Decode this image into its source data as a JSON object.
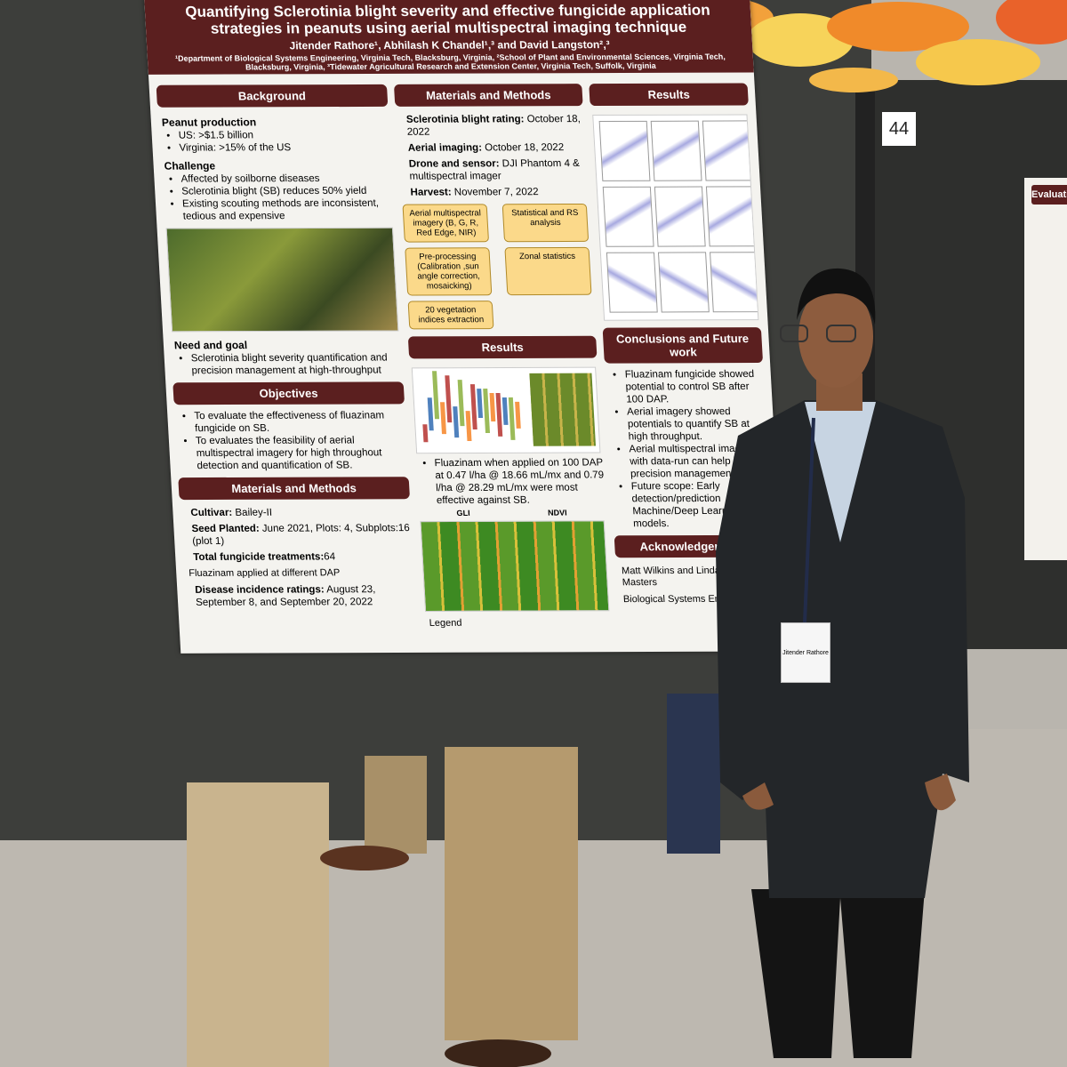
{
  "board_number": "44",
  "right_poster": {
    "heading": "Evaluation"
  },
  "poster": {
    "title": "Quantifying Sclerotinia blight severity and effective fungicide application strategies in peanuts using aerial multispectral imaging technique",
    "authors": "Jitender Rathore¹, Abhilash K Chandel¹,³ and David Langston²,³",
    "affiliations": "¹Department of Biological Systems Engineering, Virginia Tech, Blacksburg, Virginia, ²School of Plant and Environmental Sciences, Virginia Tech, Blacksburg, Virginia, ³Tidewater Agricultural Research and Extension Center, Virginia Tech, Suffolk, Virginia",
    "columns": [
      [
        {
          "heading": "Background",
          "parts": [
            {
              "subhead": "Peanut production"
            },
            {
              "bullets": [
                "US: >$1.5 billion",
                "Virginia: >15% of the US"
              ]
            },
            {
              "subhead": "Challenge"
            },
            {
              "bullets": [
                "Affected by soilborne diseases",
                "Sclerotinia blight (SB) reduces 50% yield",
                "Existing scouting methods are inconsistent, tedious and expensive"
              ]
            },
            {
              "subhead": "Need and goal"
            },
            {
              "bullets": [
                "Sclerotinia blight severity quantification and precision management at high-throughput"
              ]
            }
          ]
        },
        {
          "heading": "Objectives",
          "parts": [
            {
              "bullets": [
                "To evaluate the effectiveness of fluazinam fungicide on SB.",
                "To evaluates the feasibility of aerial multispectral imagery for high throughout detection and quantification of SB."
              ]
            }
          ]
        },
        {
          "heading": "Materials and Methods",
          "parts": [
            {
              "fields": [
                [
                  "Cultivar:",
                  " Bailey-II"
                ],
                [
                  "Seed Planted:",
                  " June 2021, Plots: 4, Subplots:16 (plot 1)"
                ],
                [
                  "Total fungicide treatments:",
                  "64"
                ]
              ]
            },
            {
              "text": "Fluazinam applied at different DAP"
            },
            {
              "fields": [
                [
                  "Disease incidence ratings:",
                  " August 23, September 8, and September 20, 2022"
                ]
              ]
            }
          ]
        }
      ],
      [
        {
          "heading": "Materials and Methods",
          "parts": [
            {
              "fields": [
                [
                  "Sclerotinia blight rating:",
                  " October 18, 2022"
                ],
                [
                  "Aerial imaging:",
                  " October 18, 2022"
                ],
                [
                  "Drone and sensor:",
                  " DJI Phantom 4 & multispectral imager"
                ],
                [
                  "Harvest:",
                  " November 7, 2022"
                ]
              ]
            },
            {
              "flow": [
                "Aerial multispectral imagery (B, G, R, Red Edge, NIR)",
                "Statistical and RS analysis",
                "Pre-processing (Calibration ,sun angle correction, mosaicking)",
                "Zonal statistics",
                "20 vegetation indices extraction"
              ]
            }
          ]
        },
        {
          "heading": "Results",
          "parts": [
            {
              "bullets": [
                "Fluazinam when applied on 100 DAP at 0.47 l/ha @ 18.66 mL/mx and 0.79 l/ha @ 28.29 mL/mx were most effective against SB."
              ]
            },
            {
              "figure_titles": [
                "GLI",
                "NDVI"
              ]
            },
            {
              "text": "Legend"
            }
          ]
        }
      ],
      [
        {
          "heading": "Results"
        },
        {
          "heading": "Conclusions and Future work",
          "parts": [
            {
              "bullets": [
                "Fluazinam fungicide showed potential to control SB after 100 DAP.",
                "Aerial imagery showed potentials to quantify SB at high throughput.",
                "Aerial multispectral imagery with data-run can help in precision management of SB",
                "Future scope: Early detection/prediction Machine/Deep Learning models."
              ]
            }
          ]
        },
        {
          "heading": "Acknowledgements",
          "parts": [
            {
              "text": "Matt Wilkins and Linda Byrd-Masters"
            },
            {
              "text": "Biological Systems Engineering"
            }
          ]
        }
      ]
    ]
  },
  "badge": {
    "name": "Jitender Rathore"
  }
}
